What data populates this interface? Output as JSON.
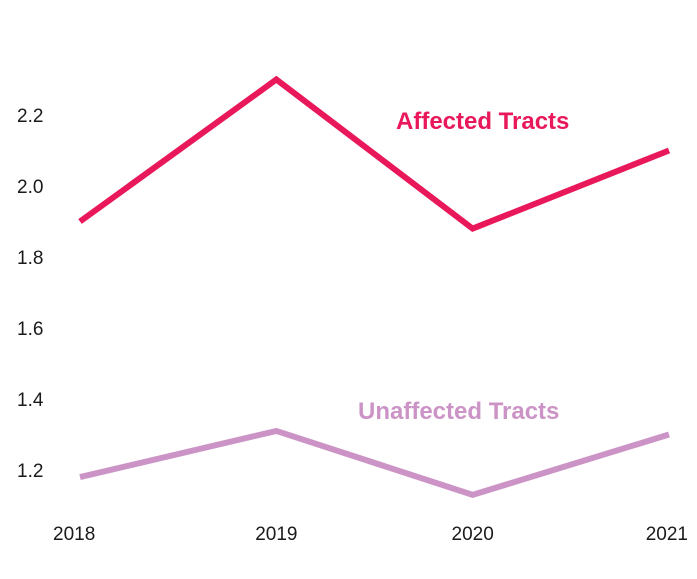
{
  "chart_data": {
    "type": "line",
    "title": "",
    "xlabel": "",
    "ylabel": "",
    "categories": [
      "2018",
      "2019",
      "2020",
      "2021"
    ],
    "ylim": [
      1.1,
      2.4
    ],
    "y_ticks": [
      "1.2",
      "1.4",
      "1.6",
      "1.8",
      "2.0",
      "2.2"
    ],
    "grid": false,
    "legend": "direct labels beside lines",
    "series": [
      {
        "name": "Affected Tracts",
        "color": "#e8185a",
        "values": [
          1.9,
          2.3,
          1.88,
          2.1
        ]
      },
      {
        "name": "Unaffected Tracts",
        "color": "#cc94c6",
        "values": [
          1.18,
          1.31,
          1.13,
          1.3
        ]
      }
    ]
  }
}
